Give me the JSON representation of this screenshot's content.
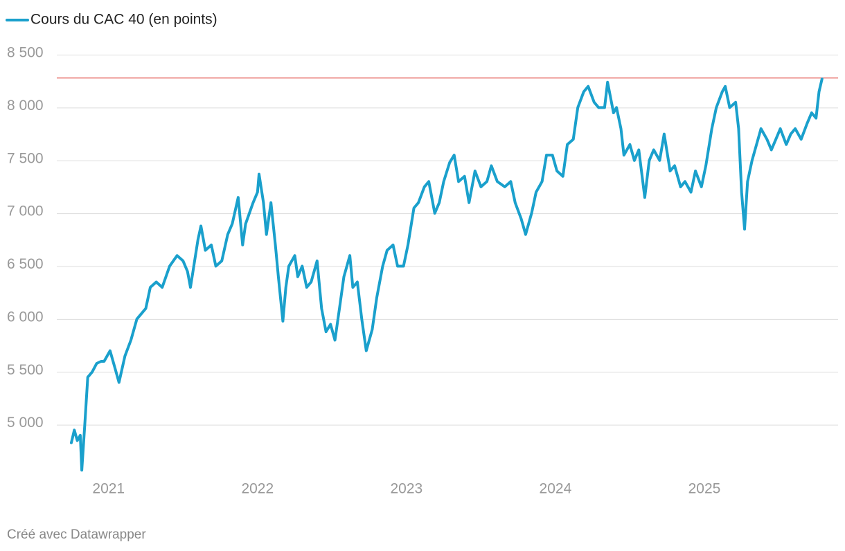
{
  "chart_data": {
    "type": "line",
    "series": [
      {
        "name": "Cours du CAC 40 (en points)",
        "color": "#1aa0cc",
        "values": [
          4830,
          4950,
          4850,
          4900,
          4570,
          5000,
          5450,
          5500,
          5580,
          5600,
          5600,
          5700,
          5550,
          5400,
          5650,
          5800,
          6000,
          6050,
          6100,
          6300,
          6350,
          6300,
          6500,
          6600,
          6550,
          6450,
          6300,
          6750,
          6880,
          6650,
          6700,
          6500,
          6550,
          6800,
          6900,
          7150,
          6700,
          6900,
          7100,
          7200,
          7370,
          7100,
          6800,
          7100,
          6700,
          6400,
          5980,
          6300,
          6500,
          6600,
          6400,
          6500,
          6300,
          6350,
          6550,
          6100,
          5880,
          5950,
          5800,
          6100,
          6400,
          6600,
          6300,
          6350,
          6000,
          5700,
          5900,
          6200,
          6500,
          6650,
          6700,
          6500,
          6500,
          6700,
          7050,
          7100,
          7250,
          7300,
          7000,
          7100,
          7300,
          7480,
          7550,
          7300,
          7350,
          7100,
          7400,
          7250,
          7300,
          7450,
          7300,
          7250,
          7300,
          7100,
          6950,
          6800,
          7000,
          7200,
          7300,
          7550,
          7550,
          7400,
          7350,
          7650,
          7700,
          8000,
          8150,
          8200,
          8050,
          8000,
          8000,
          8240,
          7950,
          8000,
          7800,
          7550,
          7650,
          7500,
          7600,
          7150,
          7500,
          7600,
          7500,
          7750,
          7400,
          7450,
          7250,
          7300,
          7200,
          7400,
          7250,
          7450,
          7800,
          8000,
          8150,
          8200,
          8000,
          8050,
          7800,
          7200,
          6850,
          7300,
          7500,
          7600,
          7800,
          7700,
          7600,
          7700,
          7800,
          7650,
          7750,
          7800,
          7700,
          7850,
          7950,
          7900,
          8150,
          8270
        ]
      }
    ],
    "x": [
      2020.75,
      2020.77,
      2020.79,
      2020.81,
      2020.82,
      2020.84,
      2020.86,
      2020.89,
      2020.92,
      2020.95,
      2020.97,
      2021.01,
      2021.04,
      2021.07,
      2021.11,
      2021.15,
      2021.19,
      2021.22,
      2021.25,
      2021.28,
      2021.32,
      2021.36,
      2021.41,
      2021.46,
      2021.5,
      2021.53,
      2021.55,
      2021.6,
      2021.62,
      2021.65,
      2021.69,
      2021.72,
      2021.76,
      2021.8,
      2021.83,
      2021.87,
      2021.9,
      2021.92,
      2021.97,
      2022.0,
      2022.01,
      2022.04,
      2022.06,
      2022.09,
      2022.12,
      2022.14,
      2022.17,
      2022.19,
      2022.21,
      2022.25,
      2022.27,
      2022.3,
      2022.33,
      2022.36,
      2022.4,
      2022.43,
      2022.46,
      2022.49,
      2022.52,
      2022.55,
      2022.58,
      2022.62,
      2022.64,
      2022.67,
      2022.7,
      2022.73,
      2022.77,
      2022.8,
      2022.84,
      2022.87,
      2022.91,
      2022.94,
      2022.98,
      2023.01,
      2023.05,
      2023.08,
      2023.12,
      2023.15,
      2023.19,
      2023.22,
      2023.25,
      2023.29,
      2023.32,
      2023.35,
      2023.39,
      2023.42,
      2023.46,
      2023.5,
      2023.54,
      2023.57,
      2023.61,
      2023.66,
      2023.7,
      2023.73,
      2023.77,
      2023.8,
      2023.84,
      2023.87,
      2023.91,
      2023.94,
      2023.98,
      2024.01,
      2024.05,
      2024.08,
      2024.12,
      2024.15,
      2024.19,
      2024.22,
      2024.26,
      2024.29,
      2024.33,
      2024.35,
      2024.39,
      2024.41,
      2024.44,
      2024.46,
      2024.5,
      2024.53,
      2024.56,
      2024.6,
      2024.63,
      2024.66,
      2024.7,
      2024.73,
      2024.77,
      2024.8,
      2024.84,
      2024.87,
      2024.91,
      2024.94,
      2024.98,
      2025.01,
      2025.05,
      2025.08,
      2025.12,
      2025.14,
      2025.17,
      2025.21,
      2025.23,
      2025.25,
      2025.27,
      2025.29,
      2025.32,
      2025.34,
      2025.38,
      2025.42,
      2025.45,
      2025.48,
      2025.51,
      2025.55,
      2025.58,
      2025.61,
      2025.65,
      2025.69,
      2025.72,
      2025.75,
      2025.77,
      2025.79
    ],
    "xlim": [
      2020.75,
      2025.8
    ],
    "xticks": [
      2021,
      2022,
      2023,
      2024,
      2025
    ],
    "ylim": [
      4500,
      8500
    ],
    "yticks": [
      {
        "value": 5000,
        "label": "5 000"
      },
      {
        "value": 5500,
        "label": "5 500"
      },
      {
        "value": 6000,
        "label": "6 000"
      },
      {
        "value": 6500,
        "label": "6 500"
      },
      {
        "value": 7000,
        "label": "7 000"
      },
      {
        "value": 7500,
        "label": "7 500"
      },
      {
        "value": 8000,
        "label": "8 000"
      },
      {
        "value": 8500,
        "label": "8 500"
      }
    ],
    "grid": true,
    "reference_line": {
      "value": 8280,
      "color": "#e8756f"
    },
    "footer": "Créé avec Datawrapper"
  }
}
